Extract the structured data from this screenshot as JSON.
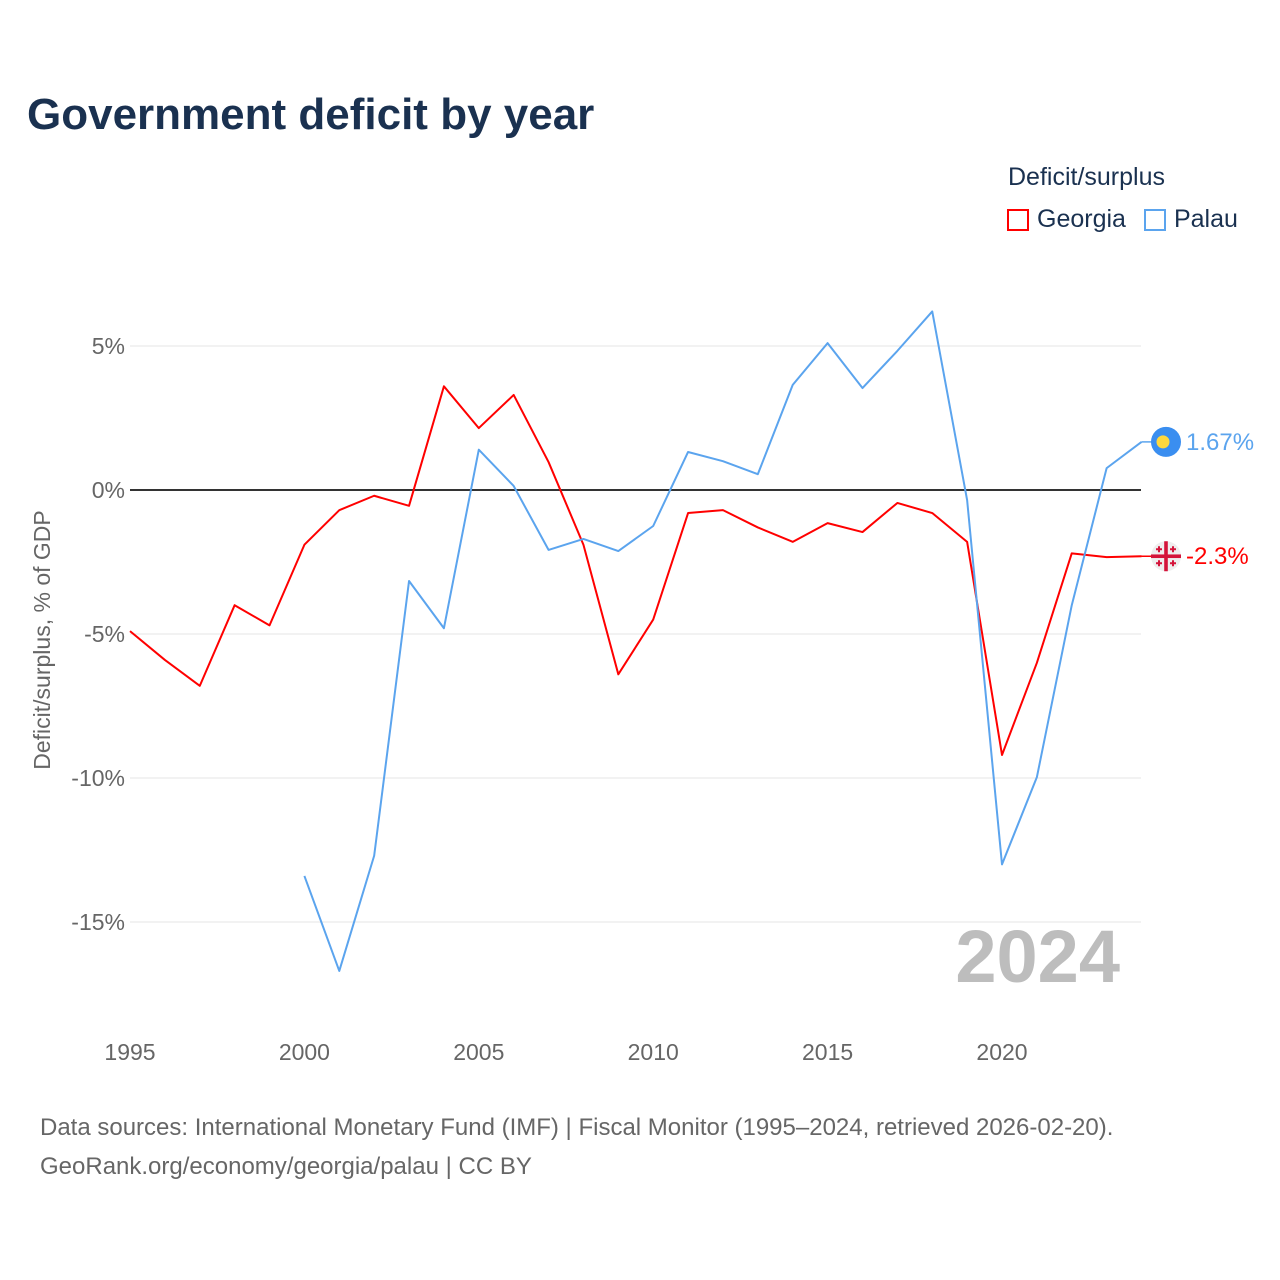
{
  "title": "Government deficit by year",
  "legend": {
    "title": "Deficit/surplus",
    "items": [
      {
        "name": "Georgia",
        "color": "#ff0000"
      },
      {
        "name": "Palau",
        "color": "#5ba4ee"
      }
    ]
  },
  "source_line1": "Data sources: International Monetary Fund (IMF) | Fiscal Monitor (1995–2024, retrieved 2026-02-20).",
  "source_line2": "GeoRank.org/economy/georgia/palau | CC BY",
  "chart_data": {
    "type": "line",
    "title": "Government deficit by year",
    "xlabel": "",
    "ylabel": "Deficit/surplus, % of GDP",
    "xlim": [
      1995,
      2024
    ],
    "ylim": [
      -18,
      7.5
    ],
    "xticks": [
      1995,
      2000,
      2005,
      2010,
      2015,
      2020
    ],
    "xtick_labels": [
      "1995",
      "2000",
      "2005",
      "2010",
      "2015",
      "2020"
    ],
    "yticks": [
      5,
      0,
      -5,
      -10,
      -15
    ],
    "ytick_labels": [
      "5%",
      "0%",
      "-5%",
      "-10%",
      "-15%"
    ],
    "year_watermark": "2024",
    "series": [
      {
        "name": "Georgia",
        "color": "#ff0000",
        "end_label": "-2.3%",
        "x": [
          1995,
          1996,
          1997,
          1998,
          1999,
          2000,
          2001,
          2002,
          2003,
          2004,
          2005,
          2006,
          2007,
          2008,
          2009,
          2010,
          2011,
          2012,
          2013,
          2014,
          2015,
          2016,
          2017,
          2018,
          2019,
          2020,
          2021,
          2022,
          2023,
          2024
        ],
        "values": [
          -4.9,
          -5.9,
          -6.8,
          -4.0,
          -4.7,
          -1.9,
          -0.7,
          -0.2,
          -0.55,
          3.6,
          2.15,
          3.3,
          0.97,
          -1.9,
          -6.4,
          -4.5,
          -0.8,
          -0.7,
          -1.3,
          -1.8,
          -1.15,
          -1.46,
          -0.45,
          -0.8,
          -1.8,
          -9.2,
          -6.0,
          -2.2,
          -2.33,
          -2.3
        ]
      },
      {
        "name": "Palau",
        "color": "#5ba4ee",
        "end_label": "1.67%",
        "x": [
          2000,
          2001,
          2002,
          2003,
          2004,
          2005,
          2006,
          2007,
          2008,
          2009,
          2010,
          2011,
          2012,
          2013,
          2014,
          2015,
          2016,
          2017,
          2018,
          2019,
          2020,
          2021,
          2022,
          2023,
          2024
        ],
        "values": [
          -13.4,
          -16.7,
          -12.7,
          -3.16,
          -4.8,
          1.4,
          0.14,
          -2.08,
          -1.7,
          -2.12,
          -1.25,
          1.32,
          1.0,
          0.55,
          3.65,
          5.1,
          3.54,
          4.83,
          6.2,
          -0.35,
          -13.0,
          -9.97,
          -4.0,
          0.76,
          1.67
        ]
      }
    ]
  }
}
